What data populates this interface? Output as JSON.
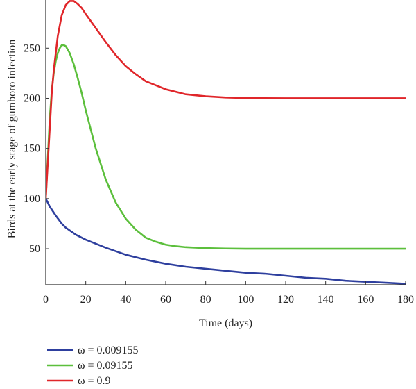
{
  "chart_data": {
    "type": "line",
    "title": "",
    "xlabel": "Time (days)",
    "ylabel": "Birds at the early stage of gumboro infection",
    "xlim": [
      0,
      180
    ],
    "ylim": [
      14,
      298
    ],
    "xticks": [
      0,
      20,
      40,
      60,
      80,
      100,
      120,
      140,
      160,
      180
    ],
    "yticks": [
      50,
      100,
      150,
      200,
      250
    ],
    "grid": false,
    "legend_position": "bottom-left, below plot",
    "series": [
      {
        "name": "ω = 0.009155",
        "color": "#2e3f9e",
        "x": [
          0,
          2,
          5,
          8,
          10,
          15,
          20,
          25,
          30,
          40,
          50,
          60,
          70,
          80,
          90,
          100,
          110,
          120,
          130,
          140,
          150,
          160,
          170,
          180
        ],
        "y": [
          100,
          92,
          83,
          75,
          71,
          64,
          59,
          55,
          51,
          44,
          39,
          35,
          32,
          30,
          28,
          26,
          25,
          23,
          21,
          20,
          18,
          17,
          16,
          15
        ]
      },
      {
        "name": "ω = 0.09155",
        "color": "#5cbf3c",
        "x": [
          0,
          1,
          2,
          3,
          4,
          5,
          6,
          7,
          8,
          9,
          10,
          12,
          14,
          16,
          18,
          20,
          25,
          30,
          35,
          40,
          45,
          50,
          55,
          60,
          65,
          70,
          80,
          90,
          100,
          120,
          140,
          160,
          180
        ],
        "y": [
          100,
          140,
          180,
          208,
          225,
          237,
          245,
          250,
          253,
          253,
          252,
          245,
          234,
          220,
          205,
          188,
          150,
          119,
          96,
          80,
          69,
          61,
          57,
          54,
          52.5,
          51.5,
          50.6,
          50.2,
          50,
          50,
          50,
          50,
          50
        ]
      },
      {
        "name": "ω = 0.9",
        "color": "#e0262a",
        "x": [
          0,
          1,
          2,
          3,
          4,
          6,
          8,
          10,
          12,
          14,
          16,
          18,
          20,
          25,
          30,
          35,
          40,
          45,
          50,
          60,
          70,
          80,
          90,
          100,
          120,
          140,
          160,
          180
        ],
        "y": [
          100,
          135,
          170,
          205,
          228,
          262,
          283,
          293,
          297,
          297,
          294,
          290,
          284,
          270,
          256,
          243,
          232,
          224,
          217,
          209,
          204,
          202,
          200.8,
          200.3,
          200,
          200,
          200,
          200
        ]
      }
    ]
  }
}
